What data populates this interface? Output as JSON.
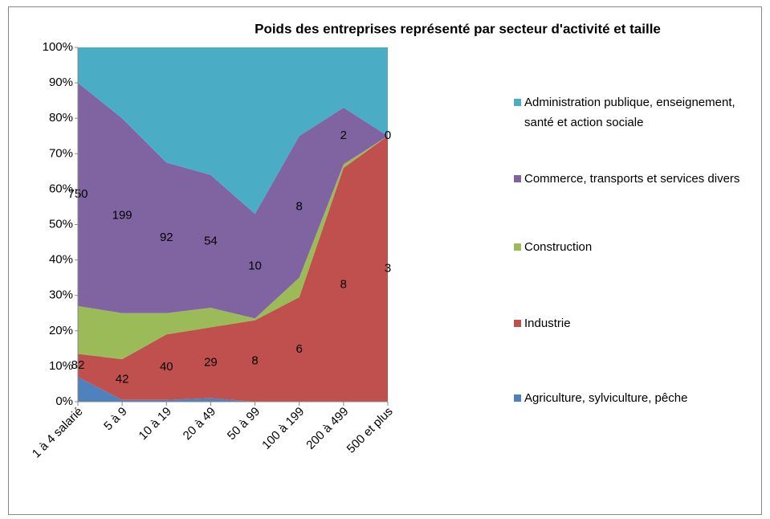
{
  "chart_data": {
    "type": "area_stacked_100",
    "title": "Poids  des entreprises représenté par secteur d'activité et taille",
    "categories": [
      "1 à 4 salarié",
      "5 à 9",
      "10 à 19",
      "20 à 49",
      "50 à 99",
      "100 à 199",
      "200 à 499",
      "500 et plus"
    ],
    "series": [
      {
        "name": "Agriculture, sylviculture, pêche",
        "color": "#4f81bd",
        "values": [
          7,
          0.5,
          0.5,
          1,
          0,
          0,
          0,
          0
        ]
      },
      {
        "name": "Industrie",
        "color": "#c0504d",
        "values": [
          6.5,
          11.5,
          18.5,
          20,
          23,
          29.5,
          66,
          75
        ],
        "data_labels": [
          82,
          42,
          40,
          29,
          8,
          6,
          8,
          3
        ]
      },
      {
        "name": "Construction",
        "color": "#9bbb59",
        "values": [
          13.5,
          13,
          6,
          5.5,
          0.5,
          5.5,
          1,
          0
        ]
      },
      {
        "name": "Commerce, transports et services divers",
        "color": "#8064a2",
        "values": [
          63,
          55,
          42.5,
          37.5,
          29.5,
          40,
          16,
          0
        ],
        "data_labels": [
          750,
          199,
          92,
          54,
          10,
          8,
          2,
          0
        ]
      },
      {
        "name": "Administration publique, enseignement, santé et action sociale",
        "color": "#4bacc6",
        "values": [
          10,
          20,
          32.5,
          36,
          47,
          25,
          17,
          25
        ]
      }
    ],
    "ylim": [
      0,
      100
    ],
    "yticks": [
      {
        "value": 0,
        "label": "0%"
      },
      {
        "value": 10,
        "label": "10%"
      },
      {
        "value": 20,
        "label": "20%"
      },
      {
        "value": 30,
        "label": "30%"
      },
      {
        "value": 40,
        "label": "40%"
      },
      {
        "value": 50,
        "label": "50%"
      },
      {
        "value": 60,
        "label": "60%"
      },
      {
        "value": 70,
        "label": "70%"
      },
      {
        "value": 80,
        "label": "80%"
      },
      {
        "value": 90,
        "label": "90%"
      },
      {
        "value": 100,
        "label": "100%"
      }
    ],
    "legend": "right"
  }
}
